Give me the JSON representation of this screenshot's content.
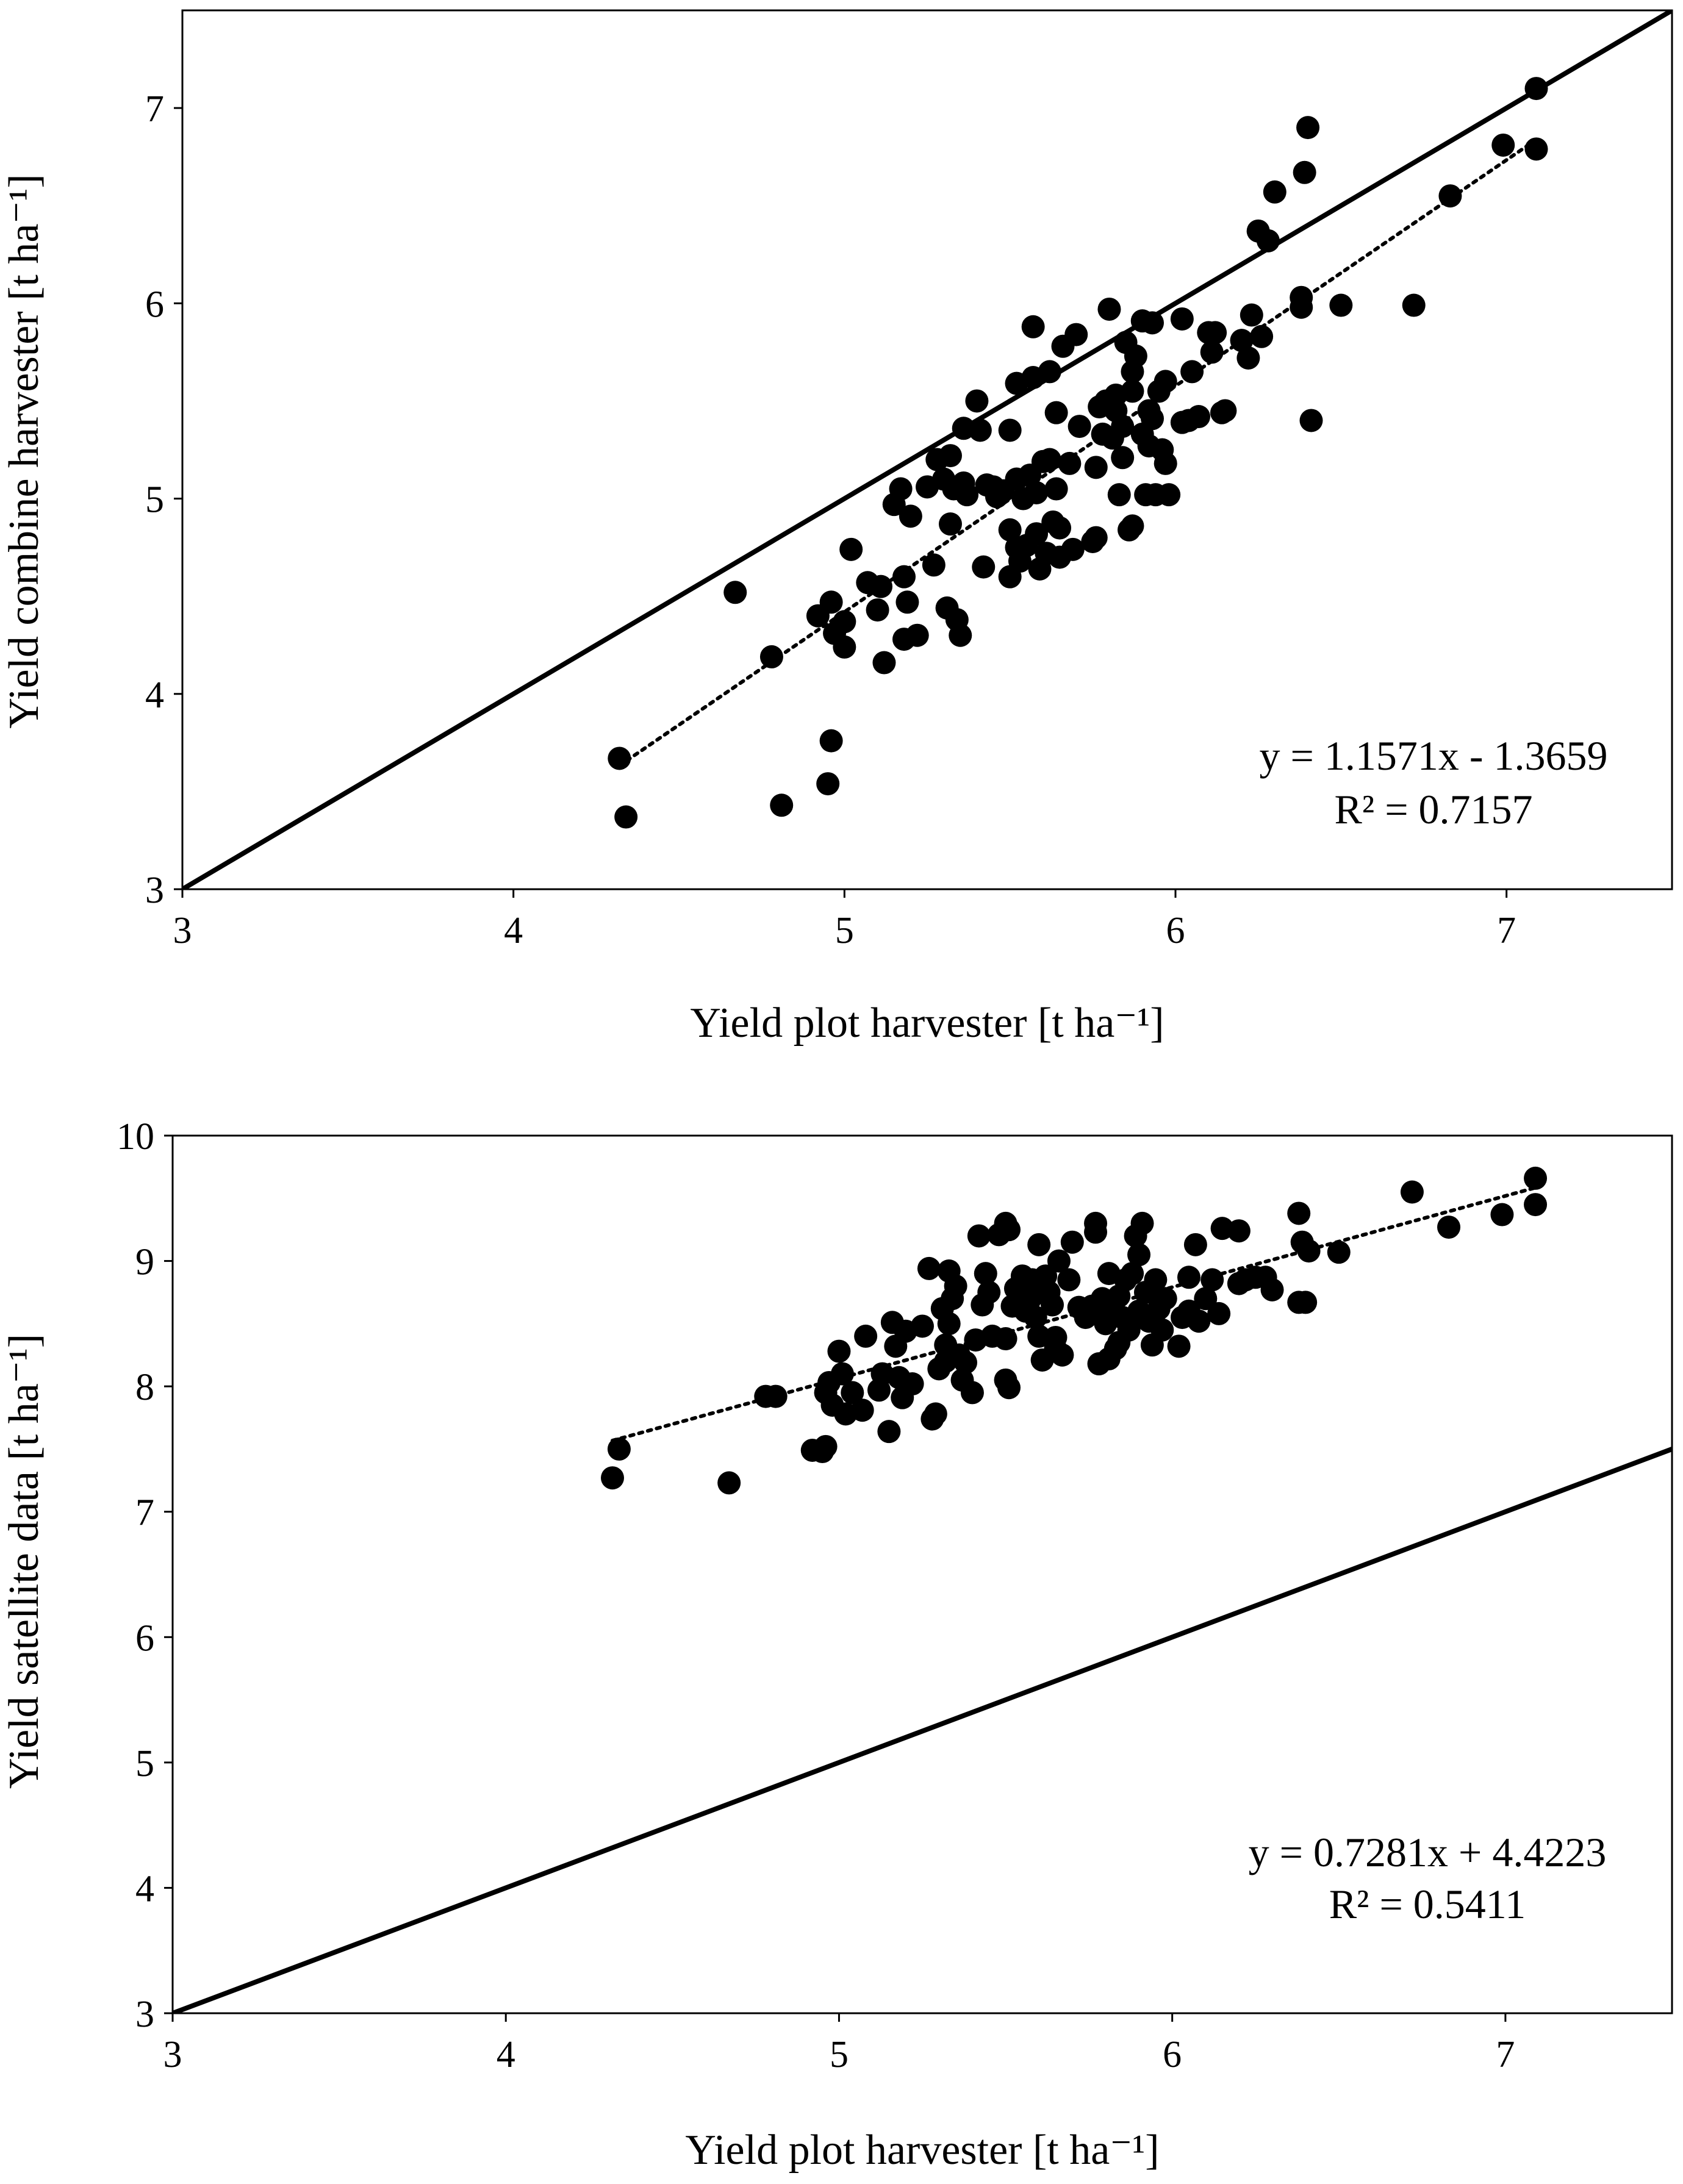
{
  "chart_data": [
    {
      "type": "scatter",
      "xlabel": "Yield plot harvester [t ha⁻¹]",
      "ylabel": "Yield combine harvester [t ha⁻¹]",
      "xlim": [
        3,
        7.5
      ],
      "ylim": [
        3,
        7.5
      ],
      "xticks": [
        "3",
        "4",
        "5",
        "6",
        "7"
      ],
      "yticks": [
        "3",
        "4",
        "5",
        "6",
        "7"
      ],
      "equation": "y = 1.1571x - 1.3659",
      "r_squared": "R² = 0.7157",
      "reference_line": {
        "style": "solid",
        "x": [
          3,
          7.5
        ],
        "y": [
          3,
          7.5
        ]
      },
      "trendline": {
        "style": "dotted",
        "slope": 1.1571,
        "intercept": -1.3659,
        "x_range": [
          4.32,
          7.09
        ]
      },
      "points": [
        [
          4.32,
          3.67
        ],
        [
          4.34,
          3.37
        ],
        [
          4.67,
          4.52
        ],
        [
          4.78,
          4.19
        ],
        [
          4.81,
          3.43
        ],
        [
          4.95,
          3.54
        ],
        [
          4.96,
          3.76
        ],
        [
          4.92,
          4.4
        ],
        [
          4.96,
          4.47
        ],
        [
          4.97,
          4.31
        ],
        [
          5.0,
          4.24
        ],
        [
          5.0,
          4.37
        ],
        [
          5.02,
          4.74
        ],
        [
          5.07,
          4.57
        ],
        [
          5.1,
          4.43
        ],
        [
          5.11,
          4.55
        ],
        [
          5.12,
          4.16
        ],
        [
          5.15,
          4.97
        ],
        [
          5.17,
          5.05
        ],
        [
          5.18,
          4.6
        ],
        [
          5.18,
          4.28
        ],
        [
          5.19,
          4.47
        ],
        [
          5.2,
          4.91
        ],
        [
          5.22,
          4.3
        ],
        [
          5.25,
          5.06
        ],
        [
          5.27,
          4.66
        ],
        [
          5.28,
          5.2
        ],
        [
          5.3,
          5.1
        ],
        [
          5.31,
          4.44
        ],
        [
          5.32,
          4.87
        ],
        [
          5.32,
          5.22
        ],
        [
          5.33,
          5.05
        ],
        [
          5.34,
          4.38
        ],
        [
          5.35,
          4.3
        ],
        [
          5.36,
          5.36
        ],
        [
          5.36,
          5.08
        ],
        [
          5.37,
          5.02
        ],
        [
          5.4,
          5.5
        ],
        [
          5.41,
          5.35
        ],
        [
          5.42,
          4.65
        ],
        [
          5.43,
          5.07
        ],
        [
          5.45,
          5.06
        ],
        [
          5.46,
          5.01
        ],
        [
          5.48,
          5.04
        ],
        [
          5.5,
          5.35
        ],
        [
          5.5,
          4.6
        ],
        [
          5.5,
          4.84
        ],
        [
          5.52,
          5.1
        ],
        [
          5.52,
          5.59
        ],
        [
          5.52,
          4.75
        ],
        [
          5.53,
          4.68
        ],
        [
          5.54,
          5.0
        ],
        [
          5.55,
          4.76
        ],
        [
          5.56,
          5.12
        ],
        [
          5.57,
          5.62
        ],
        [
          5.57,
          5.88
        ],
        [
          5.58,
          4.82
        ],
        [
          5.58,
          5.03
        ],
        [
          5.59,
          4.64
        ],
        [
          5.6,
          5.19
        ],
        [
          5.61,
          4.72
        ],
        [
          5.62,
          5.65
        ],
        [
          5.62,
          5.2
        ],
        [
          5.63,
          4.88
        ],
        [
          5.64,
          5.05
        ],
        [
          5.64,
          5.44
        ],
        [
          5.65,
          4.7
        ],
        [
          5.65,
          4.85
        ],
        [
          5.66,
          5.78
        ],
        [
          5.68,
          5.18
        ],
        [
          5.69,
          4.74
        ],
        [
          5.7,
          5.84
        ],
        [
          5.71,
          5.37
        ],
        [
          5.75,
          4.78
        ],
        [
          5.76,
          4.8
        ],
        [
          5.76,
          5.16
        ],
        [
          5.77,
          5.47
        ],
        [
          5.78,
          5.33
        ],
        [
          5.79,
          5.5
        ],
        [
          5.8,
          5.97
        ],
        [
          5.81,
          5.31
        ],
        [
          5.82,
          5.45
        ],
        [
          5.82,
          5.53
        ],
        [
          5.83,
          5.02
        ],
        [
          5.84,
          5.21
        ],
        [
          5.84,
          5.37
        ],
        [
          5.85,
          5.8
        ],
        [
          5.86,
          4.84
        ],
        [
          5.87,
          4.86
        ],
        [
          5.87,
          5.65
        ],
        [
          5.87,
          5.55
        ],
        [
          5.88,
          5.73
        ],
        [
          5.9,
          5.33
        ],
        [
          5.9,
          5.91
        ],
        [
          5.91,
          5.02
        ],
        [
          5.92,
          5.27
        ],
        [
          5.92,
          5.45
        ],
        [
          5.93,
          5.9
        ],
        [
          5.93,
          5.41
        ],
        [
          5.94,
          5.02
        ],
        [
          5.95,
          5.55
        ],
        [
          5.96,
          5.25
        ],
        [
          5.97,
          5.6
        ],
        [
          5.97,
          5.18
        ],
        [
          5.98,
          5.02
        ],
        [
          6.02,
          5.92
        ],
        [
          6.02,
          5.39
        ],
        [
          6.04,
          5.4
        ],
        [
          6.05,
          5.65
        ],
        [
          6.07,
          5.42
        ],
        [
          6.1,
          5.85
        ],
        [
          6.11,
          5.75
        ],
        [
          6.12,
          5.85
        ],
        [
          6.14,
          5.44
        ],
        [
          6.15,
          5.45
        ],
        [
          6.2,
          5.81
        ],
        [
          6.22,
          5.72
        ],
        [
          6.23,
          5.94
        ],
        [
          6.25,
          6.37
        ],
        [
          6.26,
          5.83
        ],
        [
          6.28,
          6.32
        ],
        [
          6.3,
          6.57
        ],
        [
          6.38,
          5.98
        ],
        [
          6.38,
          6.03
        ],
        [
          6.39,
          6.67
        ],
        [
          6.4,
          6.9
        ],
        [
          6.41,
          5.4
        ],
        [
          6.5,
          5.99
        ],
        [
          6.72,
          5.99
        ],
        [
          6.83,
          6.55
        ],
        [
          6.99,
          6.81
        ],
        [
          7.09,
          7.1
        ],
        [
          7.09,
          6.79
        ]
      ]
    },
    {
      "type": "scatter",
      "xlabel": "Yield plot harvester [t ha⁻¹]",
      "ylabel": "Yield satellite data [t ha⁻¹]",
      "xlim": [
        3,
        7.5
      ],
      "ylim": [
        3,
        10
      ],
      "xticks": [
        "3",
        "4",
        "5",
        "6",
        "7"
      ],
      "yticks": [
        "3",
        "4",
        "5",
        "6",
        "7",
        "8",
        "9",
        "10"
      ],
      "equation": "y = 0.7281x + 4.4223",
      "r_squared": "R² = 0.5411",
      "reference_line": {
        "style": "solid",
        "x": [
          3,
          7.5
        ],
        "y": [
          3,
          7.5
        ]
      },
      "trendline": {
        "style": "dotted",
        "slope": 0.7281,
        "intercept": 4.4223,
        "x_range": [
          4.32,
          7.09
        ]
      },
      "points": [
        [
          4.32,
          7.27
        ],
        [
          4.34,
          7.5
        ],
        [
          4.67,
          7.23
        ],
        [
          4.78,
          7.92
        ],
        [
          4.81,
          7.92
        ],
        [
          4.92,
          7.49
        ],
        [
          4.95,
          7.48
        ],
        [
          4.96,
          7.52
        ],
        [
          4.96,
          7.95
        ],
        [
          4.97,
          8.03
        ],
        [
          4.98,
          7.85
        ],
        [
          5.0,
          8.28
        ],
        [
          5.01,
          8.1
        ],
        [
          5.02,
          7.78
        ],
        [
          5.04,
          7.95
        ],
        [
          5.07,
          7.81
        ],
        [
          5.08,
          8.4
        ],
        [
          5.12,
          7.97
        ],
        [
          5.13,
          8.1
        ],
        [
          5.15,
          7.64
        ],
        [
          5.16,
          8.51
        ],
        [
          5.17,
          8.32
        ],
        [
          5.18,
          8.07
        ],
        [
          5.19,
          7.91
        ],
        [
          5.2,
          8.44
        ],
        [
          5.22,
          8.02
        ],
        [
          5.25,
          8.48
        ],
        [
          5.27,
          8.94
        ],
        [
          5.28,
          7.74
        ],
        [
          5.29,
          7.78
        ],
        [
          5.3,
          8.14
        ],
        [
          5.31,
          8.62
        ],
        [
          5.32,
          8.33
        ],
        [
          5.32,
          8.2
        ],
        [
          5.33,
          8.92
        ],
        [
          5.33,
          8.5
        ],
        [
          5.34,
          8.7
        ],
        [
          5.35,
          8.8
        ],
        [
          5.36,
          8.25
        ],
        [
          5.37,
          8.05
        ],
        [
          5.38,
          8.19
        ],
        [
          5.4,
          7.95
        ],
        [
          5.41,
          8.37
        ],
        [
          5.42,
          9.2
        ],
        [
          5.43,
          8.65
        ],
        [
          5.44,
          8.9
        ],
        [
          5.45,
          8.75
        ],
        [
          5.46,
          8.4
        ],
        [
          5.48,
          9.21
        ],
        [
          5.5,
          8.05
        ],
        [
          5.5,
          8.38
        ],
        [
          5.5,
          9.3
        ],
        [
          5.51,
          7.99
        ],
        [
          5.51,
          9.25
        ],
        [
          5.52,
          8.64
        ],
        [
          5.53,
          8.78
        ],
        [
          5.55,
          8.88
        ],
        [
          5.56,
          8.6
        ],
        [
          5.57,
          8.68
        ],
        [
          5.58,
          8.85
        ],
        [
          5.58,
          8.72
        ],
        [
          5.59,
          8.55
        ],
        [
          5.6,
          9.13
        ],
        [
          5.6,
          8.4
        ],
        [
          5.61,
          8.21
        ],
        [
          5.62,
          8.88
        ],
        [
          5.63,
          8.75
        ],
        [
          5.64,
          8.65
        ],
        [
          5.65,
          8.39
        ],
        [
          5.65,
          8.3
        ],
        [
          5.66,
          9.0
        ],
        [
          5.67,
          8.25
        ],
        [
          5.69,
          8.85
        ],
        [
          5.7,
          9.15
        ],
        [
          5.72,
          8.63
        ],
        [
          5.74,
          8.55
        ],
        [
          5.76,
          8.64
        ],
        [
          5.77,
          9.23
        ],
        [
          5.77,
          9.3
        ],
        [
          5.78,
          8.18
        ],
        [
          5.79,
          8.7
        ],
        [
          5.8,
          8.5
        ],
        [
          5.81,
          8.9
        ],
        [
          5.81,
          8.22
        ],
        [
          5.82,
          8.6
        ],
        [
          5.83,
          8.3
        ],
        [
          5.84,
          8.72
        ],
        [
          5.84,
          8.35
        ],
        [
          5.85,
          8.55
        ],
        [
          5.86,
          8.85
        ],
        [
          5.87,
          8.45
        ],
        [
          5.88,
          8.9
        ],
        [
          5.89,
          9.2
        ],
        [
          5.9,
          9.05
        ],
        [
          5.9,
          8.6
        ],
        [
          5.91,
          9.3
        ],
        [
          5.92,
          8.75
        ],
        [
          5.93,
          8.52
        ],
        [
          5.94,
          8.33
        ],
        [
          5.95,
          8.85
        ],
        [
          5.96,
          8.62
        ],
        [
          5.97,
          8.45
        ],
        [
          5.98,
          8.7
        ],
        [
          6.02,
          8.32
        ],
        [
          6.03,
          8.55
        ],
        [
          6.05,
          8.87
        ],
        [
          6.05,
          8.6
        ],
        [
          6.07,
          9.13
        ],
        [
          6.08,
          8.52
        ],
        [
          6.1,
          8.7
        ],
        [
          6.12,
          8.85
        ],
        [
          6.14,
          8.58
        ],
        [
          6.15,
          9.26
        ],
        [
          6.2,
          9.24
        ],
        [
          6.2,
          8.82
        ],
        [
          6.22,
          8.85
        ],
        [
          6.25,
          8.87
        ],
        [
          6.28,
          8.87
        ],
        [
          6.3,
          8.77
        ],
        [
          6.38,
          9.38
        ],
        [
          6.38,
          8.67
        ],
        [
          6.39,
          9.15
        ],
        [
          6.4,
          8.67
        ],
        [
          6.41,
          9.08
        ],
        [
          6.5,
          9.07
        ],
        [
          6.72,
          9.55
        ],
        [
          6.83,
          9.27
        ],
        [
          6.99,
          9.37
        ],
        [
          7.09,
          9.66
        ],
        [
          7.09,
          9.45
        ]
      ]
    }
  ]
}
